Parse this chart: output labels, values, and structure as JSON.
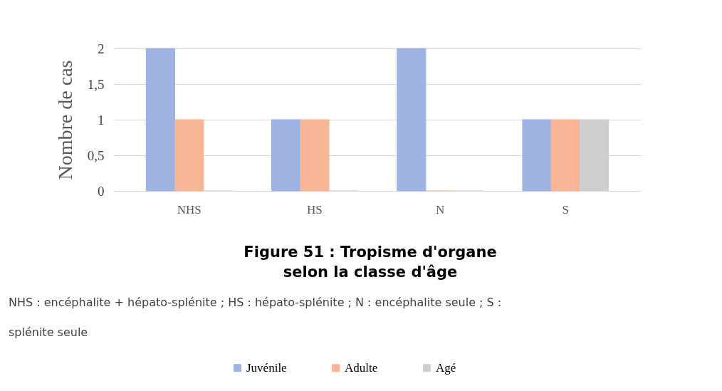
{
  "chart_data": {
    "type": "bar",
    "title": "Figure 51 : Tropisme d'organe selon la classe d'âge",
    "ylabel": "Nombre de cas",
    "categories": [
      "NHS",
      "HS",
      "N",
      "S"
    ],
    "series": [
      {
        "name": "Juvénile",
        "color": "#9fb3e3",
        "values": [
          2,
          1,
          2,
          1
        ]
      },
      {
        "name": "Adulte",
        "color": "#f8b596",
        "values": [
          1,
          1,
          0,
          1
        ]
      },
      {
        "name": "Agé",
        "color": "#cfcfcf",
        "values": [
          0,
          0,
          0,
          1
        ]
      }
    ],
    "ylim": [
      0,
      2
    ],
    "yticks": [
      0,
      {
        "value": 0.5,
        "label": "0,5"
      },
      1,
      {
        "value": 1.5,
        "label": "1,5"
      },
      2
    ],
    "grid": "y",
    "legend": "bottom",
    "annotations": [
      "NHS : encéphalite + hépato-splénite ; HS : hépato-splénite ; N : encéphalite seule ; S : splénite seule"
    ]
  }
}
